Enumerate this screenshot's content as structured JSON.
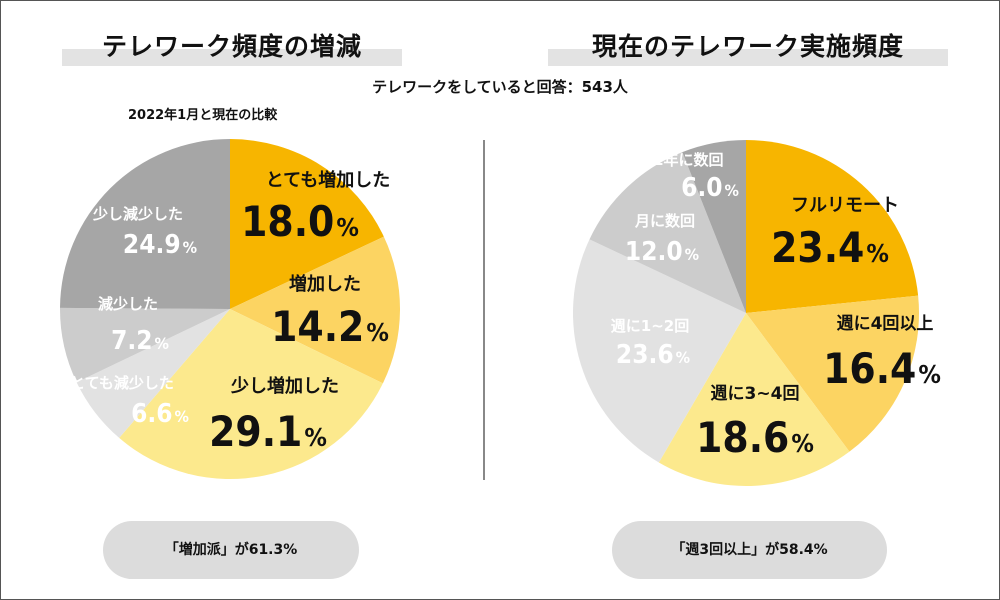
{
  "titles": {
    "left": "テレワーク頻度の増減",
    "right": "現在のテレワーク実施頻度"
  },
  "subtitle": "テレワークをしていると回答：543人",
  "left_note": "2022年1月と現在の比較",
  "summary": {
    "left": "「増加派」が61.3%",
    "right": "「週3回以上」が58.4%"
  },
  "colors": {
    "dark_gold": "#f7b500",
    "mid_gold": "#fcd462",
    "light_gold": "#fce98d",
    "light_gray": "#e2e2e2",
    "mid_gray": "#cccccc",
    "gray": "#b5b5b5",
    "dark_gray": "#a6a6a6",
    "pill_gray": "#dcdcdc"
  },
  "chart_data": [
    {
      "type": "pie",
      "title": "テレワーク頻度の増減",
      "slices": [
        {
          "label": "とても増加した",
          "value": 18.0,
          "display": "18.0",
          "color": "#f7b500",
          "text_color": "#111111"
        },
        {
          "label": "増加した",
          "value": 14.2,
          "display": "14.2",
          "color": "#fcd462",
          "text_color": "#111111"
        },
        {
          "label": "少し増加した",
          "value": 29.1,
          "display": "29.1",
          "color": "#fce98d",
          "text_color": "#111111"
        },
        {
          "label": "とても減少した",
          "value": 6.6,
          "display": "6.6",
          "color": "#e2e2e2",
          "text_color": "#ffffff"
        },
        {
          "label": "減少した",
          "value": 7.2,
          "display": "7.2",
          "color": "#cccccc",
          "text_color": "#ffffff"
        },
        {
          "label": "少し減少した",
          "value": 24.9,
          "display": "24.9",
          "color": "#a6a6a6",
          "text_color": "#ffffff"
        }
      ],
      "unit": "%"
    },
    {
      "type": "pie",
      "title": "現在のテレワーク実施頻度",
      "slices": [
        {
          "label": "フルリモート",
          "value": 23.4,
          "display": "23.4",
          "color": "#f7b500",
          "text_color": "#111111"
        },
        {
          "label": "週に4回以上",
          "value": 16.4,
          "display": "16.4",
          "color": "#fcd462",
          "text_color": "#111111"
        },
        {
          "label": "週に3~4回",
          "value": 18.6,
          "display": "18.6",
          "color": "#fce98d",
          "text_color": "#111111"
        },
        {
          "label": "週に1~2回",
          "value": 23.6,
          "display": "23.6",
          "color": "#e2e2e2",
          "text_color": "#ffffff"
        },
        {
          "label": "月に数回",
          "value": 12.0,
          "display": "12.0",
          "color": "#cccccc",
          "text_color": "#ffffff"
        },
        {
          "label": "半年~1年に数回",
          "value": 6.0,
          "display": "6.0",
          "color": "#a6a6a6",
          "text_color": "#ffffff"
        }
      ],
      "unit": "%"
    }
  ]
}
